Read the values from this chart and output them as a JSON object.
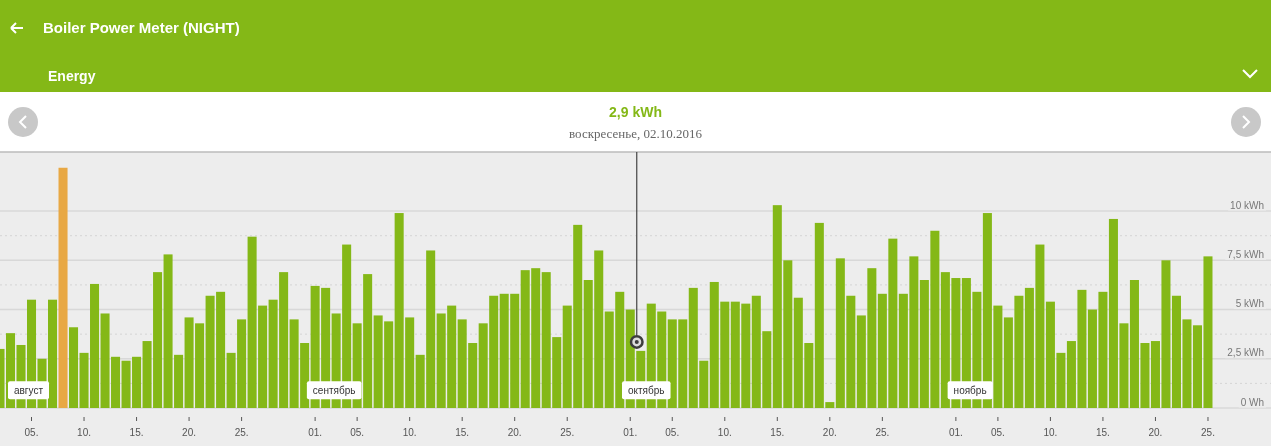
{
  "chart_data": {
    "type": "bar",
    "title": "Boiler Power Meter (NIGHT)",
    "subtitle": "Energy",
    "ref_lines": [
      {
        "axis": "x",
        "value": "2016-10-02"
      }
    ],
    "annotations": [
      "2,9 kWh",
      "воскресенье, 02.10.2016",
      {
        "text": "август",
        "x": "2016-08-02",
        "y": 0.9
      },
      {
        "text": "сентябрь",
        "x": "2016-09-01",
        "y": 0.9
      },
      {
        "text": "октябрь",
        "x": "2016-10-01",
        "y": 0.9
      },
      {
        "text": "ноябрь",
        "x": "2016-11-01",
        "y": 0.9
      }
    ],
    "x": [
      "2016-08-02",
      "2016-08-03",
      "2016-08-04",
      "2016-08-05",
      "2016-08-06",
      "2016-08-07",
      "2016-08-08",
      "2016-08-09",
      "2016-08-10",
      "2016-08-11",
      "2016-08-12",
      "2016-08-13",
      "2016-08-14",
      "2016-08-15",
      "2016-08-16",
      "2016-08-17",
      "2016-08-18",
      "2016-08-19",
      "2016-08-20",
      "2016-08-21",
      "2016-08-22",
      "2016-08-23",
      "2016-08-24",
      "2016-08-25",
      "2016-08-26",
      "2016-08-27",
      "2016-08-28",
      "2016-08-29",
      "2016-08-30",
      "2016-08-31",
      "2016-09-01",
      "2016-09-02",
      "2016-09-03",
      "2016-09-04",
      "2016-09-05",
      "2016-09-06",
      "2016-09-07",
      "2016-09-08",
      "2016-09-09",
      "2016-09-10",
      "2016-09-11",
      "2016-09-12",
      "2016-09-13",
      "2016-09-14",
      "2016-09-15",
      "2016-09-16",
      "2016-09-17",
      "2016-09-18",
      "2016-09-19",
      "2016-09-20",
      "2016-09-21",
      "2016-09-22",
      "2016-09-23",
      "2016-09-24",
      "2016-09-25",
      "2016-09-26",
      "2016-09-27",
      "2016-09-28",
      "2016-09-29",
      "2016-09-30",
      "2016-10-01",
      "2016-10-02",
      "2016-10-03",
      "2016-10-04",
      "2016-10-05",
      "2016-10-06",
      "2016-10-07",
      "2016-10-08",
      "2016-10-09",
      "2016-10-10",
      "2016-10-11",
      "2016-10-12",
      "2016-10-13",
      "2016-10-14",
      "2016-10-15",
      "2016-10-16",
      "2016-10-17",
      "2016-10-18",
      "2016-10-19",
      "2016-10-20",
      "2016-10-21",
      "2016-10-22",
      "2016-10-23",
      "2016-10-24",
      "2016-10-25",
      "2016-10-26",
      "2016-10-27",
      "2016-10-28",
      "2016-10-29",
      "2016-10-30",
      "2016-10-31",
      "2016-11-01",
      "2016-11-02",
      "2016-11-03",
      "2016-11-04",
      "2016-11-05",
      "2016-11-06",
      "2016-11-07",
      "2016-11-08",
      "2016-11-09",
      "2016-11-10",
      "2016-11-11",
      "2016-11-12",
      "2016-11-13",
      "2016-11-14",
      "2016-11-15",
      "2016-11-16",
      "2016-11-17",
      "2016-11-18",
      "2016-11-19",
      "2016-11-20",
      "2016-11-21",
      "2016-11-22",
      "2016-11-23",
      "2016-11-24",
      "2016-11-25"
    ],
    "values": [
      3.0,
      3.8,
      3.2,
      5.5,
      2.5,
      5.5,
      12.2,
      4.1,
      2.8,
      6.3,
      4.8,
      2.6,
      2.4,
      2.6,
      3.4,
      6.9,
      7.8,
      2.7,
      4.6,
      4.3,
      5.7,
      5.9,
      2.8,
      4.5,
      8.7,
      5.2,
      5.5,
      6.9,
      4.5,
      3.3,
      6.2,
      6.1,
      4.8,
      8.3,
      4.3,
      6.8,
      4.7,
      4.4,
      9.9,
      4.6,
      2.7,
      8.0,
      4.8,
      5.2,
      4.5,
      3.3,
      4.3,
      5.7,
      5.8,
      5.8,
      7.0,
      7.1,
      6.9,
      3.6,
      5.2,
      9.3,
      6.5,
      8.0,
      4.9,
      5.9,
      5.0,
      2.9,
      5.3,
      4.9,
      4.5,
      4.5,
      6.1,
      2.4,
      6.4,
      5.4,
      5.4,
      5.3,
      5.7,
      3.9,
      10.3,
      7.5,
      5.6,
      3.3,
      9.4,
      0.3,
      7.6,
      5.7,
      4.7,
      7.1,
      5.8,
      8.6,
      5.8,
      7.7,
      6.5,
      9.0,
      6.9,
      6.6,
      6.6,
      5.9,
      9.9,
      5.2,
      4.6,
      5.7,
      6.1,
      8.3,
      5.4,
      2.8,
      3.4,
      6.0,
      5.0,
      5.9,
      9.6,
      4.3,
      6.5,
      3.3,
      3.4,
      7.5,
      5.7,
      4.5,
      4.2,
      7.7
    ],
    "colors": [
      "#84b817",
      "#84b817",
      "#84b817",
      "#84b817",
      "#84b817",
      "#84b817",
      "#e8a844",
      "#84b817",
      "#84b817",
      "#84b817",
      "#84b817",
      "#84b817",
      "#84b817",
      "#84b817",
      "#84b817",
      "#84b817",
      "#84b817",
      "#84b817",
      "#84b817",
      "#84b817",
      "#84b817",
      "#84b817",
      "#84b817",
      "#84b817",
      "#84b817",
      "#84b817",
      "#84b817",
      "#84b817",
      "#84b817",
      "#84b817",
      "#84b817",
      "#84b817",
      "#84b817",
      "#84b817",
      "#84b817",
      "#84b817",
      "#84b817",
      "#84b817",
      "#84b817",
      "#84b817",
      "#84b817",
      "#84b817",
      "#84b817",
      "#84b817",
      "#84b817",
      "#84b817",
      "#84b817",
      "#84b817",
      "#84b817",
      "#84b817",
      "#84b817",
      "#84b817",
      "#84b817",
      "#84b817",
      "#84b817",
      "#84b817",
      "#84b817",
      "#84b817",
      "#84b817",
      "#84b817",
      "#84b817",
      "#84b817",
      "#84b817",
      "#84b817",
      "#84b817",
      "#84b817",
      "#84b817",
      "#84b817",
      "#84b817",
      "#84b817",
      "#84b817",
      "#84b817",
      "#84b817",
      "#84b817",
      "#84b817",
      "#84b817",
      "#84b817",
      "#84b817",
      "#84b817",
      "#84b817",
      "#84b817",
      "#84b817",
      "#84b817",
      "#84b817",
      "#84b817",
      "#84b817",
      "#84b817",
      "#84b817",
      "#84b817",
      "#84b817",
      "#84b817",
      "#84b817",
      "#84b817",
      "#84b817",
      "#84b817",
      "#84b817",
      "#84b817",
      "#84b817",
      "#84b817",
      "#84b817",
      "#84b817",
      "#84b817",
      "#84b817",
      "#84b817",
      "#84b817",
      "#84b817",
      "#84b817",
      "#84b817",
      "#84b817",
      "#84b817",
      "#84b817",
      "#84b817",
      "#84b817",
      "#84b817",
      "#84b817",
      "#84b817"
    ],
    "xlim": [
      "2016-08-02",
      "2016-12-01"
    ],
    "xticks": [
      {
        "value": "2016-08-05",
        "label": "05."
      },
      {
        "value": "2016-08-10",
        "label": "10."
      },
      {
        "value": "2016-08-15",
        "label": "15."
      },
      {
        "value": "2016-08-20",
        "label": "20."
      },
      {
        "value": "2016-08-25",
        "label": "25."
      },
      {
        "value": "2016-09-01",
        "label": "01."
      },
      {
        "value": "2016-09-05",
        "label": "05."
      },
      {
        "value": "2016-09-10",
        "label": "10."
      },
      {
        "value": "2016-09-15",
        "label": "15."
      },
      {
        "value": "2016-09-20",
        "label": "20."
      },
      {
        "value": "2016-09-25",
        "label": "25."
      },
      {
        "value": "2016-10-01",
        "label": "01."
      },
      {
        "value": "2016-10-05",
        "label": "05."
      },
      {
        "value": "2016-10-10",
        "label": "10."
      },
      {
        "value": "2016-10-15",
        "label": "15."
      },
      {
        "value": "2016-10-20",
        "label": "20."
      },
      {
        "value": "2016-10-25",
        "label": "25."
      },
      {
        "value": "2016-11-01",
        "label": "01."
      },
      {
        "value": "2016-11-05",
        "label": "05."
      },
      {
        "value": "2016-11-10",
        "label": "10."
      },
      {
        "value": "2016-11-15",
        "label": "15."
      },
      {
        "value": "2016-11-20",
        "label": "20."
      },
      {
        "value": "2016-11-25",
        "label": "25."
      }
    ],
    "ylim": [
      0,
      13
    ],
    "yticks": [
      {
        "value": 0,
        "label": "0 Wh"
      },
      {
        "value": 1.25,
        "label": null
      },
      {
        "value": 2.5,
        "label": "2,5 kWh"
      },
      {
        "value": 3.75,
        "label": null
      },
      {
        "value": 5,
        "label": "5 kWh"
      },
      {
        "value": 6.25,
        "label": null
      },
      {
        "value": 7.5,
        "label": "7,5 kWh"
      },
      {
        "value": 8.75,
        "label": null
      },
      {
        "value": 10,
        "label": "10 kWh"
      }
    ],
    "grid": true
  }
}
